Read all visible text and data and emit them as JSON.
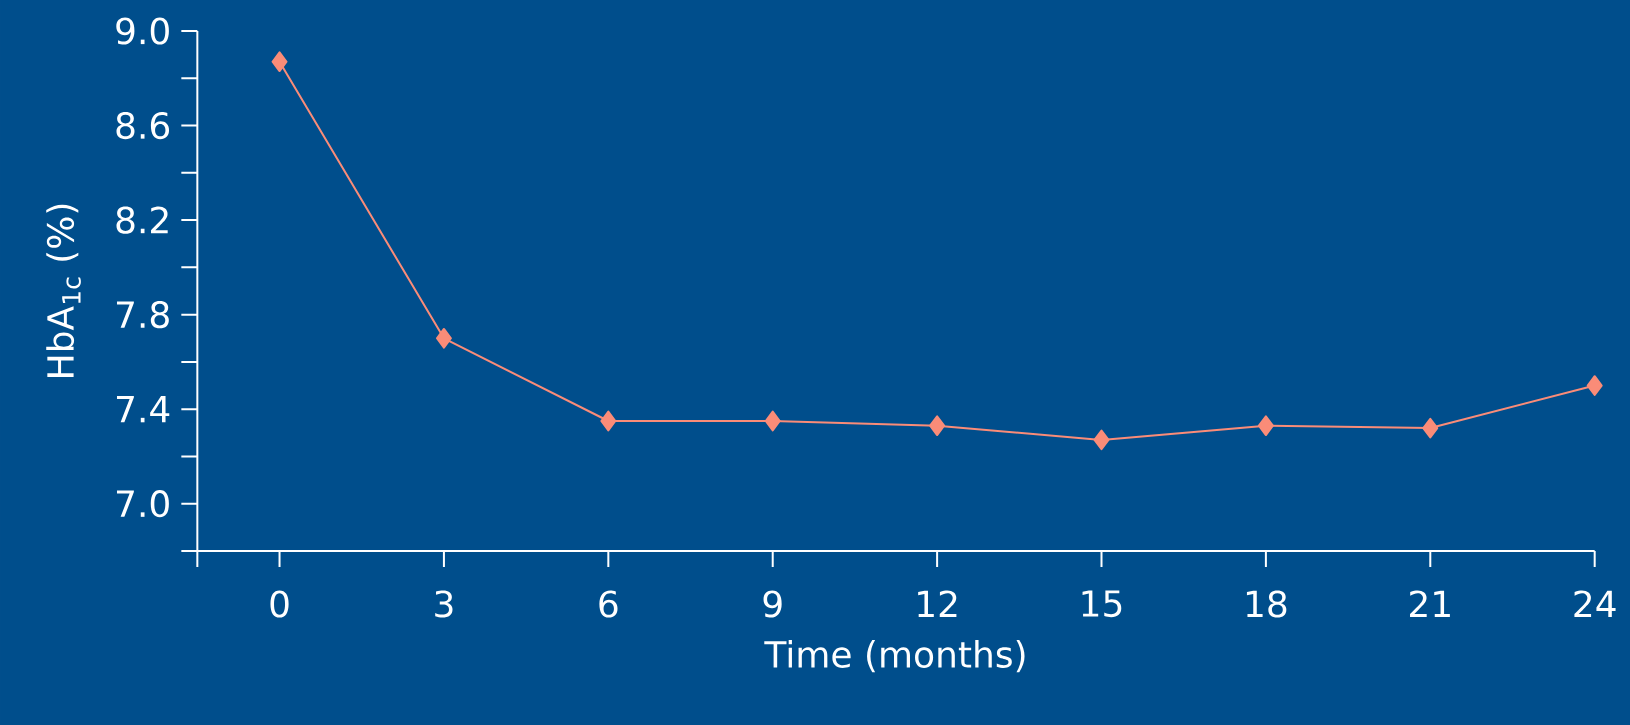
{
  "chart_data": {
    "type": "line",
    "xlabel": "Time (months)",
    "ylabel": "HbA$_{1c}$ (%)",
    "x": [
      0,
      3,
      6,
      9,
      12,
      15,
      18,
      21,
      24
    ],
    "series": [
      {
        "color": "#fa8c78",
        "values": [
          8.87,
          7.7,
          7.35,
          7.35,
          7.33,
          7.27,
          7.33,
          7.32,
          7.5
        ]
      }
    ],
    "marker": "diamond",
    "line_style": "solid",
    "grid": false,
    "xlim": [
      -1.5,
      24
    ],
    "xticks": [
      {
        "value": -1.5,
        "label": null
      },
      0,
      3,
      6,
      9,
      12,
      15,
      18,
      21,
      24
    ],
    "ylim": [
      6.8,
      9.0
    ],
    "yticks": [
      {
        "value": 6.8,
        "label": null
      },
      {
        "value": 7.0,
        "label": "7.0"
      },
      {
        "value": 7.2,
        "label": null
      },
      7.4,
      {
        "value": 7.6,
        "label": null
      },
      7.8,
      {
        "value": 8.0,
        "label": null
      },
      8.2,
      {
        "value": 8.4,
        "label": null
      },
      8.6,
      {
        "value": 8.8,
        "label": null
      },
      {
        "value": 9.0,
        "label": "9.0"
      }
    ]
  }
}
